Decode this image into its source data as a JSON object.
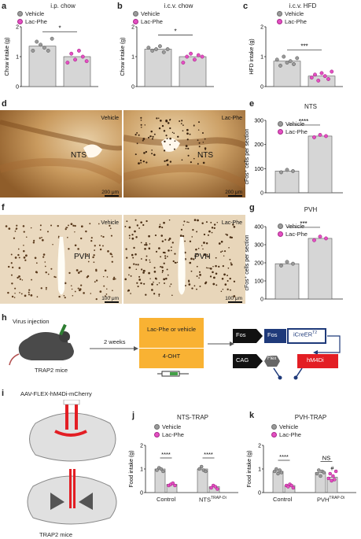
{
  "colors": {
    "vehicle": "#9a9a9a",
    "lac_phe": "#e44fc2",
    "bar": "#d6d6d6",
    "orange": "#f9b233",
    "navy": "#1f3a7a",
    "red": "#e31e24"
  },
  "legend": {
    "vehicle": "Vehicle",
    "lac_phe": "Lac-Phe"
  },
  "panels": {
    "a": {
      "letter": "a",
      "title": "i.p. chow",
      "ylabel": "Chow intake (g)",
      "sig": "*"
    },
    "b": {
      "letter": "b",
      "title": "i.c.v. chow",
      "ylabel": "Chow intake (g)",
      "sig": "*"
    },
    "c": {
      "letter": "c",
      "title": "i.c.v. HFD",
      "ylabel": "HFD intake (g)",
      "sig": "***"
    },
    "d": {
      "letter": "d",
      "left_label": "Vehicle",
      "right_label": "Lac-Phe",
      "region": "NTS",
      "scale": "200 μm"
    },
    "e": {
      "letter": "e",
      "title": "NTS",
      "ylabel": "cFos⁺ cells per section",
      "sig": "****"
    },
    "f": {
      "letter": "f",
      "left_label": "Vehicle",
      "right_label": "Lac-Phe",
      "region": "PVH",
      "scale": "100 μm"
    },
    "g": {
      "letter": "g",
      "title": "PVH",
      "ylabel": "cFos⁺ cells per section",
      "sig": "***"
    },
    "h": {
      "letter": "h",
      "virus": "Virus injection",
      "mice": "TRAP2 mice",
      "weeks": "2 weeks",
      "box1": "Lac-Phe or vehicle",
      "box2": "4-OHT",
      "fos1": "Fos",
      "fos2": "Fos",
      "icreer": "iCreER",
      "icreer_sup": "T2",
      "cag": "CAG",
      "flex": "Flex",
      "hm4di": "hM4Di"
    },
    "i": {
      "letter": "i",
      "virus": "AAV-FLEX-hM4Di-mCherry",
      "mice": "TRAP2 mice"
    },
    "j": {
      "letter": "j",
      "title": "NTS-TRAP",
      "ylabel": "Food intake (g)",
      "sig1": "****",
      "sig2": "****",
      "xcat1": "Control",
      "xcat2": "NTS",
      "xcat2_sup": "TRAP-Di"
    },
    "k": {
      "letter": "k",
      "title": "PVH-TRAP",
      "ylabel": "Food intake (g)",
      "sig1": "****",
      "sig2": "NS",
      "hash": "#",
      "xcat1": "Control",
      "xcat2": "PVH",
      "xcat2_sup": "TRAP-Di"
    }
  },
  "chart_data": [
    {
      "panel": "a",
      "type": "bar",
      "categories": [
        "Vehicle",
        "Lac-Phe"
      ],
      "values": [
        1.35,
        1.0
      ],
      "ylim": [
        0,
        2
      ],
      "yticks": [
        0,
        1,
        2
      ],
      "points": [
        [
          1.2,
          1.5,
          1.4,
          1.3,
          1.2,
          1.6
        ],
        [
          0.8,
          1.1,
          0.9,
          1.2,
          1.0,
          0.85
        ]
      ]
    },
    {
      "panel": "b",
      "type": "bar",
      "categories": [
        "Vehicle",
        "Lac-Phe"
      ],
      "values": [
        1.25,
        1.0
      ],
      "ylim": [
        0,
        2
      ],
      "yticks": [
        0,
        1,
        2
      ],
      "points": [
        [
          1.3,
          1.2,
          1.25,
          1.35,
          1.15,
          1.25
        ],
        [
          0.8,
          1.0,
          1.1,
          0.9,
          1.05,
          1.0
        ]
      ]
    },
    {
      "panel": "c",
      "type": "bar",
      "categories": [
        "Vehicle",
        "Lac-Phe"
      ],
      "values": [
        0.85,
        0.35
      ],
      "ylim": [
        0,
        2
      ],
      "yticks": [
        0,
        1,
        2
      ],
      "points": [
        [
          0.9,
          0.7,
          1.0,
          0.8,
          0.85,
          0.75,
          0.95
        ],
        [
          0.3,
          0.4,
          0.2,
          0.45,
          0.35,
          0.25,
          0.5
        ]
      ]
    },
    {
      "panel": "e",
      "type": "bar",
      "categories": [
        "Vehicle",
        "Lac-Phe"
      ],
      "values": [
        90,
        235
      ],
      "ylim": [
        0,
        300
      ],
      "yticks": [
        0,
        100,
        200,
        300
      ],
      "points": [
        [
          85,
          95,
          90
        ],
        [
          230,
          240,
          235
        ]
      ]
    },
    {
      "panel": "g",
      "type": "bar",
      "categories": [
        "Vehicle",
        "Lac-Phe"
      ],
      "values": [
        195,
        335
      ],
      "ylim": [
        0,
        400
      ],
      "yticks": [
        0,
        100,
        200,
        300,
        400
      ],
      "points": [
        [
          185,
          205,
          195
        ],
        [
          325,
          345,
          335
        ]
      ]
    },
    {
      "panel": "j",
      "type": "bar",
      "categories": [
        "Control",
        "NTS TRAP-Di"
      ],
      "series": [
        {
          "name": "Vehicle",
          "values": [
            1.0,
            1.0
          ]
        },
        {
          "name": "Lac-Phe",
          "values": [
            0.35,
            0.25
          ]
        }
      ],
      "ylim": [
        0,
        2
      ],
      "yticks": [
        0,
        1,
        2
      ],
      "points": [
        [
          [
            0.95,
            1.05,
            1.0,
            0.9
          ],
          [
            0.3,
            0.35,
            0.4,
            0.3
          ]
        ],
        [
          [
            1.0,
            1.1,
            0.95,
            0.9
          ],
          [
            0.2,
            0.3,
            0.25,
            0.15
          ]
        ]
      ]
    },
    {
      "panel": "k",
      "type": "bar",
      "categories": [
        "Control",
        "PVH TRAP-Di"
      ],
      "series": [
        {
          "name": "Vehicle",
          "values": [
            0.9,
            0.85
          ]
        },
        {
          "name": "Lac-Phe",
          "values": [
            0.3,
            0.65
          ]
        }
      ],
      "ylim": [
        0,
        2
      ],
      "yticks": [
        0,
        1,
        2
      ],
      "points": [
        [
          [
            0.9,
            1.0,
            0.8,
            0.95,
            0.85
          ],
          [
            0.3,
            0.25,
            0.35,
            0.3,
            0.2
          ]
        ],
        [
          [
            0.8,
            0.95,
            0.7,
            0.9,
            0.85
          ],
          [
            0.6,
            0.8,
            0.5,
            0.7,
            0.55,
            0.9
          ]
        ]
      ]
    }
  ]
}
